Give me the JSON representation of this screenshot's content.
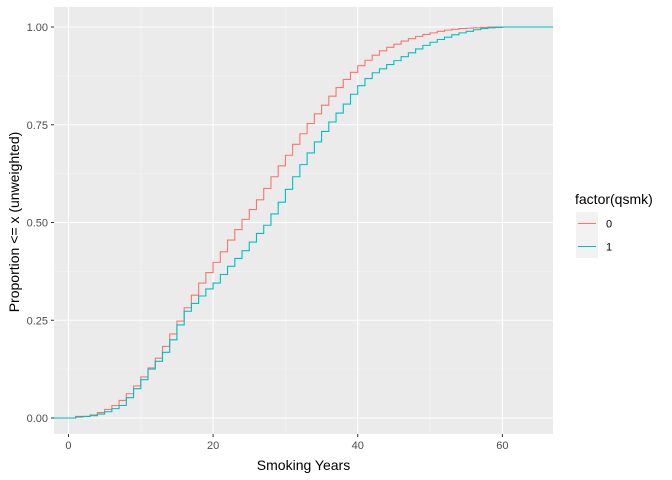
{
  "chart_data": {
    "type": "line",
    "subtype": "step-ecdf",
    "xlabel": "Smoking Years",
    "ylabel": "Proportion <= x (unweighted)",
    "xlim": [
      -2,
      67
    ],
    "ylim": [
      0,
      1
    ],
    "x_ticks": [
      0,
      20,
      40,
      60
    ],
    "y_ticks": [
      0.0,
      0.25,
      0.5,
      0.75,
      1.0
    ],
    "x_tick_labels": [
      "0",
      "20",
      "40",
      "60"
    ],
    "y_tick_labels": [
      "0.00",
      "0.25",
      "0.50",
      "0.75",
      "1.00"
    ],
    "grid": true,
    "legend": {
      "title": "factor(qsmk)",
      "position": "right"
    },
    "series": [
      {
        "name": "0",
        "color": "#F8766D",
        "points": [
          [
            -2,
            0
          ],
          [
            1,
            0.002
          ],
          [
            2,
            0.004
          ],
          [
            3,
            0.008
          ],
          [
            4,
            0.014
          ],
          [
            5,
            0.022
          ],
          [
            6,
            0.032
          ],
          [
            7,
            0.045
          ],
          [
            8,
            0.062
          ],
          [
            9,
            0.082
          ],
          [
            10,
            0.105
          ],
          [
            11,
            0.128
          ],
          [
            12,
            0.153
          ],
          [
            13,
            0.183
          ],
          [
            14,
            0.215
          ],
          [
            15,
            0.248
          ],
          [
            16,
            0.282
          ],
          [
            17,
            0.314
          ],
          [
            18,
            0.345
          ],
          [
            19,
            0.372
          ],
          [
            20,
            0.398
          ],
          [
            21,
            0.425
          ],
          [
            22,
            0.455
          ],
          [
            23,
            0.482
          ],
          [
            24,
            0.508
          ],
          [
            25,
            0.533
          ],
          [
            26,
            0.558
          ],
          [
            27,
            0.587
          ],
          [
            28,
            0.617
          ],
          [
            29,
            0.645
          ],
          [
            30,
            0.672
          ],
          [
            31,
            0.7
          ],
          [
            32,
            0.727
          ],
          [
            33,
            0.753
          ],
          [
            34,
            0.778
          ],
          [
            35,
            0.8
          ],
          [
            36,
            0.823
          ],
          [
            37,
            0.845
          ],
          [
            38,
            0.866
          ],
          [
            39,
            0.884
          ],
          [
            40,
            0.901
          ],
          [
            41,
            0.915
          ],
          [
            42,
            0.928
          ],
          [
            43,
            0.939
          ],
          [
            44,
            0.948
          ],
          [
            45,
            0.956
          ],
          [
            46,
            0.964
          ],
          [
            47,
            0.97
          ],
          [
            48,
            0.976
          ],
          [
            49,
            0.981
          ],
          [
            50,
            0.985
          ],
          [
            51,
            0.989
          ],
          [
            52,
            0.992
          ],
          [
            53,
            0.994
          ],
          [
            54,
            0.996
          ],
          [
            55,
            0.997
          ],
          [
            56,
            0.998
          ],
          [
            57,
            0.999
          ],
          [
            58,
            1.0
          ],
          [
            67,
            1.0
          ]
        ]
      },
      {
        "name": "1",
        "color": "#00BFC4",
        "points": [
          [
            -2,
            0
          ],
          [
            1,
            0.004
          ],
          [
            3,
            0.006
          ],
          [
            4,
            0.01
          ],
          [
            5,
            0.016
          ],
          [
            6,
            0.024
          ],
          [
            7,
            0.032
          ],
          [
            8,
            0.052
          ],
          [
            9,
            0.075
          ],
          [
            10,
            0.098
          ],
          [
            11,
            0.125
          ],
          [
            12,
            0.145
          ],
          [
            13,
            0.168
          ],
          [
            14,
            0.2
          ],
          [
            15,
            0.238
          ],
          [
            16,
            0.273
          ],
          [
            17,
            0.293
          ],
          [
            18,
            0.312
          ],
          [
            19,
            0.33
          ],
          [
            20,
            0.345
          ],
          [
            21,
            0.367
          ],
          [
            22,
            0.388
          ],
          [
            23,
            0.408
          ],
          [
            24,
            0.428
          ],
          [
            25,
            0.45
          ],
          [
            26,
            0.472
          ],
          [
            27,
            0.493
          ],
          [
            28,
            0.522
          ],
          [
            29,
            0.552
          ],
          [
            30,
            0.585
          ],
          [
            31,
            0.617
          ],
          [
            32,
            0.648
          ],
          [
            33,
            0.678
          ],
          [
            34,
            0.706
          ],
          [
            35,
            0.733
          ],
          [
            36,
            0.757
          ],
          [
            37,
            0.78
          ],
          [
            38,
            0.803
          ],
          [
            39,
            0.828
          ],
          [
            40,
            0.85
          ],
          [
            41,
            0.868
          ],
          [
            42,
            0.883
          ],
          [
            43,
            0.893
          ],
          [
            44,
            0.904
          ],
          [
            45,
            0.914
          ],
          [
            46,
            0.924
          ],
          [
            47,
            0.934
          ],
          [
            48,
            0.944
          ],
          [
            49,
            0.953
          ],
          [
            50,
            0.961
          ],
          [
            51,
            0.968
          ],
          [
            52,
            0.974
          ],
          [
            53,
            0.98
          ],
          [
            54,
            0.985
          ],
          [
            55,
            0.989
          ],
          [
            56,
            0.993
          ],
          [
            57,
            0.996
          ],
          [
            58,
            0.998
          ],
          [
            59,
            0.999
          ],
          [
            60,
            1.0
          ],
          [
            67,
            1.0
          ]
        ]
      }
    ]
  }
}
